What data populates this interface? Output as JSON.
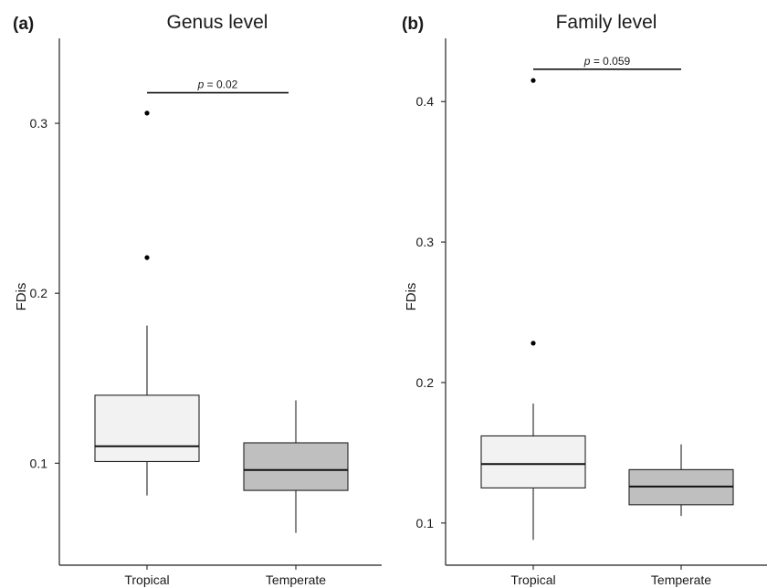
{
  "chart_data": [
    {
      "type": "box",
      "panel_label": "(a)",
      "title": "Genus level",
      "ylabel": "FDis",
      "xlabel": "",
      "categories": [
        "Tropical",
        "Temperate"
      ],
      "ylim": [
        0.04,
        0.35
      ],
      "yticks": [
        0.1,
        0.2,
        0.3
      ],
      "ytick_labels": [
        "0.1",
        "0.2",
        "0.3"
      ],
      "boxes": [
        {
          "name": "Tropical",
          "whisker_low": 0.081,
          "q1": 0.101,
          "median": 0.11,
          "q3": 0.14,
          "whisker_high": 0.181,
          "outliers": [
            0.221,
            0.306
          ],
          "fill": "#f2f2f2"
        },
        {
          "name": "Temperate",
          "whisker_low": 0.059,
          "q1": 0.084,
          "median": 0.096,
          "q3": 0.112,
          "whisker_high": 0.137,
          "outliers": [],
          "fill": "#bfbfbf"
        }
      ],
      "annotation": {
        "p_symbol": "p",
        "p_rest": " = 0.02",
        "y": 0.318
      }
    },
    {
      "type": "box",
      "panel_label": "(b)",
      "title": "Family level",
      "ylabel": "FDis",
      "xlabel": "",
      "categories": [
        "Tropical",
        "Temperate"
      ],
      "ylim": [
        0.07,
        0.445
      ],
      "yticks": [
        0.1,
        0.2,
        0.3,
        0.4
      ],
      "ytick_labels": [
        "0.1",
        "0.2",
        "0.3",
        "0.4"
      ],
      "boxes": [
        {
          "name": "Tropical",
          "whisker_low": 0.088,
          "q1": 0.125,
          "median": 0.142,
          "q3": 0.162,
          "whisker_high": 0.185,
          "outliers": [
            0.228,
            0.415
          ],
          "fill": "#f2f2f2"
        },
        {
          "name": "Temperate",
          "whisker_low": 0.105,
          "q1": 0.113,
          "median": 0.126,
          "q3": 0.138,
          "whisker_high": 0.156,
          "outliers": [],
          "fill": "#bfbfbf"
        }
      ],
      "annotation": {
        "p_symbol": "p",
        "p_rest": " = 0.059",
        "y": 0.423
      }
    }
  ]
}
